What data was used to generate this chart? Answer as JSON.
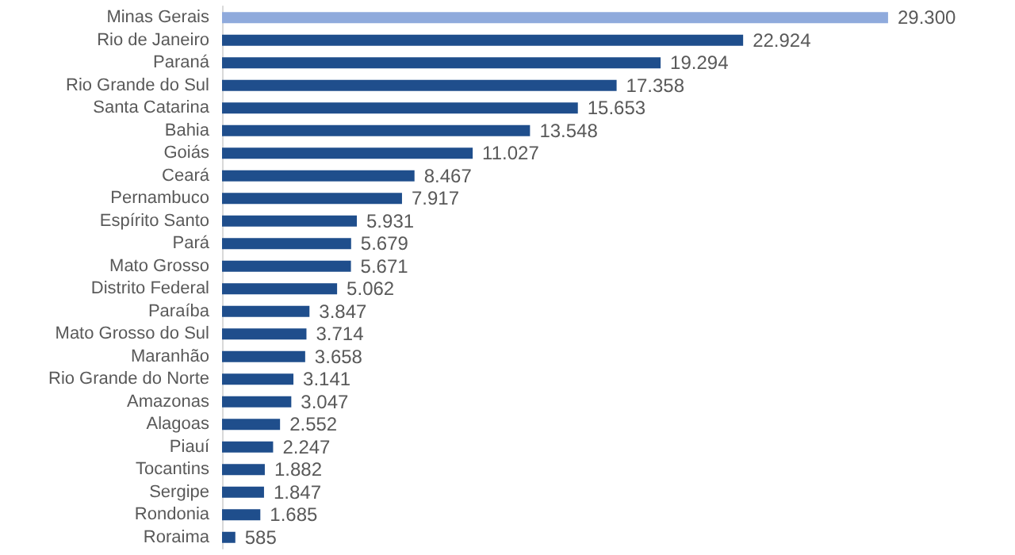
{
  "chart_data": {
    "type": "bar",
    "orientation": "horizontal",
    "value_labels": [
      "29.300",
      "22.924",
      "19.294",
      "17.358",
      "15.653",
      "13.548",
      "11.027",
      "8.467",
      "7.917",
      "5.931",
      "5.679",
      "5.671",
      "5.062",
      "3.847",
      "3.714",
      "3.658",
      "3.141",
      "3.047",
      "2.552",
      "2.247",
      "1.882",
      "1.847",
      "1.685",
      "585"
    ],
    "categories": [
      "Minas Gerais",
      "Rio de Janeiro",
      "Paraná",
      "Rio Grande do Sul",
      "Santa Catarina",
      "Bahia",
      "Goiás",
      "Ceará",
      "Pernambuco",
      "Espírito Santo",
      "Pará",
      "Mato Grosso",
      "Distrito Federal",
      "Paraíba",
      "Mato Grosso do Sul",
      "Maranhão",
      "Rio Grande do Norte",
      "Amazonas",
      "Alagoas",
      "Piauí",
      "Tocantins",
      "Sergipe",
      "Rondonia",
      "Roraima"
    ],
    "values": [
      29300,
      22924,
      19294,
      17358,
      15653,
      13548,
      11027,
      8467,
      7917,
      5931,
      5679,
      5671,
      5062,
      3847,
      3714,
      3658,
      3141,
      3047,
      2552,
      2247,
      1882,
      1847,
      1685,
      585
    ],
    "colors": [
      "#8faadc",
      "#1f4e8c",
      "#1f4e8c",
      "#1f4e8c",
      "#1f4e8c",
      "#1f4e8c",
      "#1f4e8c",
      "#1f4e8c",
      "#1f4e8c",
      "#1f4e8c",
      "#1f4e8c",
      "#1f4e8c",
      "#1f4e8c",
      "#1f4e8c",
      "#1f4e8c",
      "#1f4e8c",
      "#1f4e8c",
      "#1f4e8c",
      "#1f4e8c",
      "#1f4e8c",
      "#1f4e8c",
      "#1f4e8c",
      "#1f4e8c",
      "#1f4e8c"
    ]
  }
}
